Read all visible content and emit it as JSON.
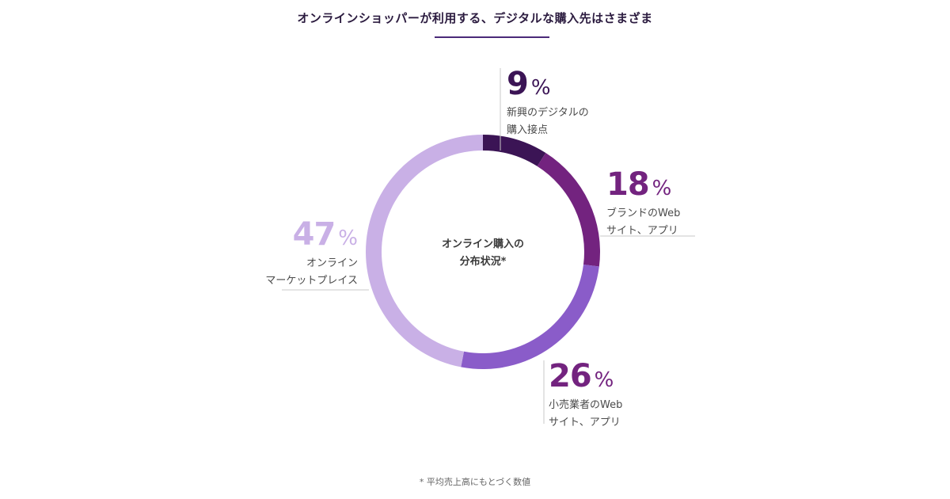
{
  "title": "オンラインショッパーが利用する、デジタルな購入先はさまざま",
  "center_label": {
    "line1": "オンライン購入の",
    "line2": "分布状況*"
  },
  "percent_symbol": "%",
  "footnote": "* 平均売上高にもとづく数値",
  "chart_data": {
    "type": "pie",
    "title": "オンラインショッパーが利用する、デジタルな購入先はさまざま",
    "slices": [
      {
        "value": 9,
        "label_line1": "新興のデジタルの",
        "label_line2": "購入接点",
        "color": "#3b1455",
        "label_color": "#3b1455"
      },
      {
        "value": 18,
        "label_line1": "ブランドのWeb",
        "label_line2": "サイト、アプリ",
        "color": "#73237f",
        "label_color": "#73237f"
      },
      {
        "value": 26,
        "label_line1": "小売業者のWeb",
        "label_line2": "サイト、アプリ",
        "color": "#8a5cc9",
        "label_color": "#73237f"
      },
      {
        "value": 47,
        "label_line1": "オンライン",
        "label_line2": "マーケットプレイス",
        "color": "#c9b0e6",
        "label_color": "#c9b0e6"
      }
    ]
  }
}
